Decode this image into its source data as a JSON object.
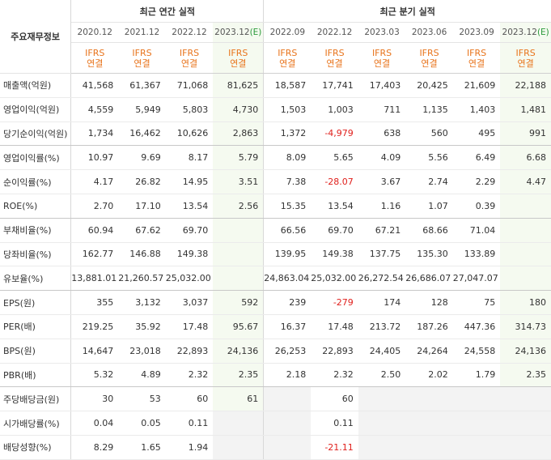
{
  "header": {
    "row_label": "주요재무정보",
    "annual_title": "최근 연간 실적",
    "quarterly_title": "최근 분기 실적",
    "annual_periods": [
      "2020.12",
      "2021.12",
      "2022.12",
      "2023.12"
    ],
    "quarterly_periods": [
      "2022.09",
      "2022.12",
      "2023.03",
      "2023.06",
      "2023.09",
      "2023.12"
    ],
    "estimate_tag": "(E)",
    "ifrs_line1": "IFRS",
    "ifrs_line2": "연결"
  },
  "rows": [
    {
      "label": "매출액(억원)",
      "values": [
        "41,568",
        "61,367",
        "71,068",
        "81,625",
        "18,587",
        "17,741",
        "17,403",
        "20,425",
        "21,609",
        "22,188"
      ]
    },
    {
      "label": "영업이익(억원)",
      "values": [
        "4,559",
        "5,949",
        "5,803",
        "4,730",
        "1,503",
        "1,003",
        "711",
        "1,135",
        "1,403",
        "1,481"
      ]
    },
    {
      "label": "당기순이익(억원)",
      "values": [
        "1,734",
        "16,462",
        "10,626",
        "2,863",
        "1,372",
        "-4,979",
        "638",
        "560",
        "495",
        "991"
      ]
    },
    {
      "label": "영업이익률(%)",
      "values": [
        "10.97",
        "9.69",
        "8.17",
        "5.79",
        "8.09",
        "5.65",
        "4.09",
        "5.56",
        "6.49",
        "6.68"
      ]
    },
    {
      "label": "순이익률(%)",
      "values": [
        "4.17",
        "26.82",
        "14.95",
        "3.51",
        "7.38",
        "-28.07",
        "3.67",
        "2.74",
        "2.29",
        "4.47"
      ]
    },
    {
      "label": "ROE(%)",
      "values": [
        "2.70",
        "17.10",
        "13.54",
        "2.56",
        "15.35",
        "13.54",
        "1.16",
        "1.07",
        "0.39",
        ""
      ]
    },
    {
      "label": "부채비율(%)",
      "values": [
        "60.94",
        "67.62",
        "69.70",
        "",
        "66.56",
        "69.70",
        "67.21",
        "68.66",
        "71.04",
        ""
      ]
    },
    {
      "label": "당좌비율(%)",
      "values": [
        "162.77",
        "146.88",
        "149.38",
        "",
        "139.95",
        "149.38",
        "137.75",
        "135.30",
        "133.89",
        ""
      ]
    },
    {
      "label": "유보율(%)",
      "values": [
        "13,881.01",
        "21,260.57",
        "25,032.00",
        "",
        "24,863.04",
        "25,032.00",
        "26,272.54",
        "26,686.07",
        "27,047.07",
        ""
      ]
    },
    {
      "label": "EPS(원)",
      "values": [
        "355",
        "3,132",
        "3,037",
        "592",
        "239",
        "-279",
        "174",
        "128",
        "75",
        "180"
      ]
    },
    {
      "label": "PER(배)",
      "values": [
        "219.25",
        "35.92",
        "17.48",
        "95.67",
        "16.37",
        "17.48",
        "213.72",
        "187.26",
        "447.36",
        "314.73"
      ]
    },
    {
      "label": "BPS(원)",
      "values": [
        "14,647",
        "23,018",
        "22,893",
        "24,136",
        "26,253",
        "22,893",
        "24,405",
        "24,264",
        "24,558",
        "24,136"
      ]
    },
    {
      "label": "PBR(배)",
      "values": [
        "5.32",
        "4.89",
        "2.32",
        "2.35",
        "2.18",
        "2.32",
        "2.50",
        "2.02",
        "1.79",
        "2.35"
      ]
    },
    {
      "label": "주당배당금(원)",
      "values": [
        "30",
        "53",
        "60",
        "61",
        "",
        "60",
        "",
        "",
        "",
        ""
      ]
    },
    {
      "label": "시가배당률(%)",
      "values": [
        "0.04",
        "0.05",
        "0.11",
        "",
        "",
        "0.11",
        "",
        "",
        "",
        ""
      ]
    },
    {
      "label": "배당성향(%)",
      "values": [
        "8.29",
        "1.65",
        "1.94",
        "",
        "",
        "-21.11",
        "",
        "",
        "",
        ""
      ]
    }
  ],
  "colors": {
    "ifrs": "#e8741c",
    "estimate_tag": "#2a9a3a",
    "negative": "#e0201c",
    "estimate_bg": "#f5faf0",
    "empty_bg": "#f3f3f3"
  }
}
